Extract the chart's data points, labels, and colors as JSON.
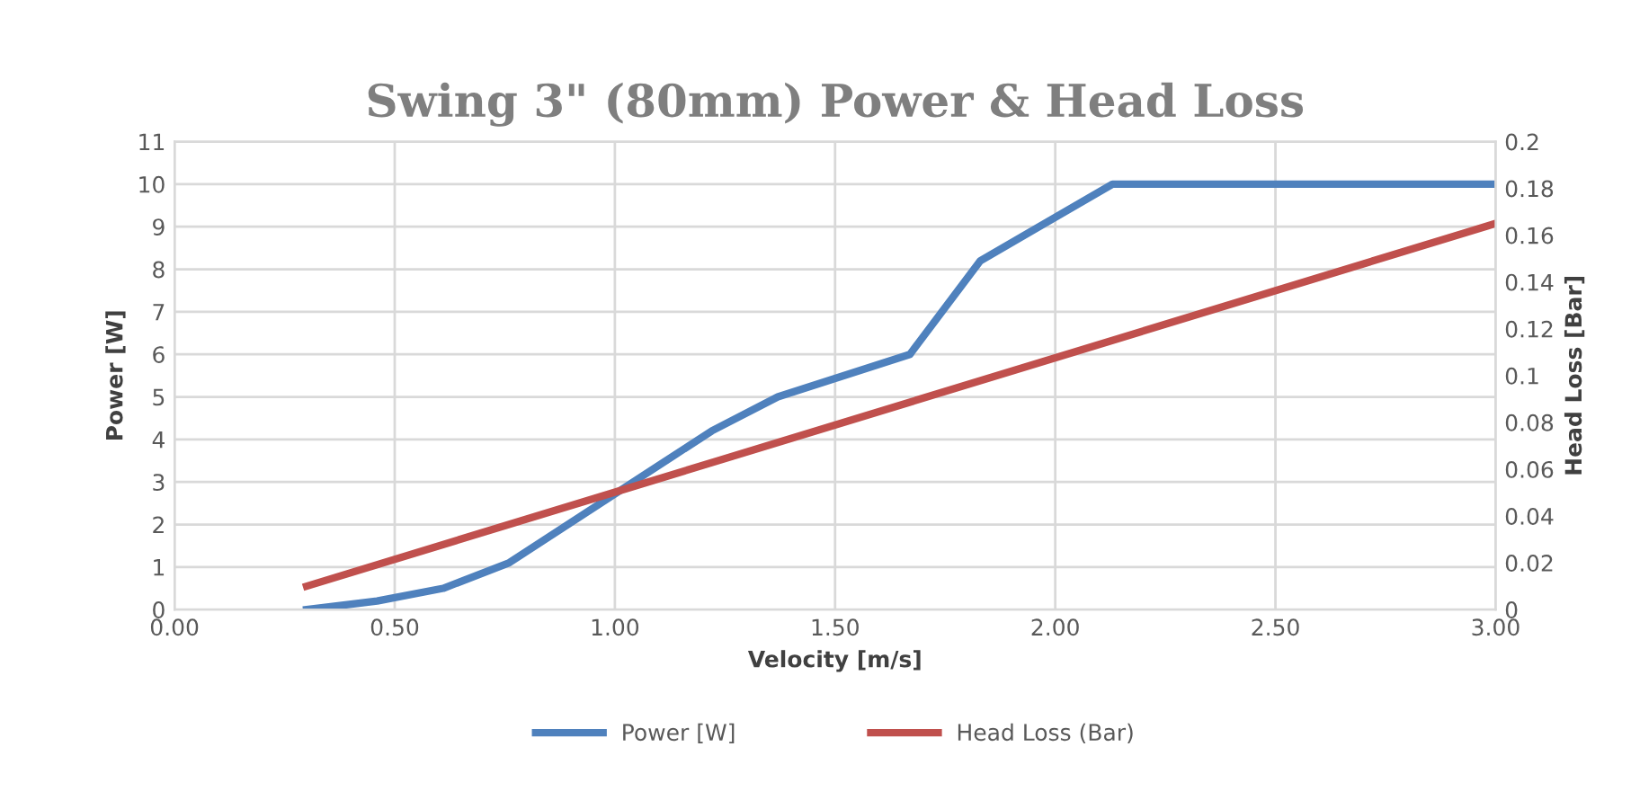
{
  "chart_data": {
    "type": "line",
    "title": "Swing 3\" (80mm) Power & Head Loss",
    "xlabel": "Velocity [m/s]",
    "ylabel": "Power [W]",
    "y2label": "Head Loss [Bar]",
    "xlim": [
      0,
      3
    ],
    "xticks": [
      {
        "value": 0,
        "label": "0.00"
      },
      {
        "value": 0.5,
        "label": "0.50"
      },
      {
        "value": 1,
        "label": "1.00"
      },
      {
        "value": 1.5,
        "label": "1.50"
      },
      {
        "value": 2,
        "label": "2.00"
      },
      {
        "value": 2.5,
        "label": "2.50"
      },
      {
        "value": 3,
        "label": "3.00"
      }
    ],
    "ylim": [
      0,
      11
    ],
    "yticks": [
      0,
      1,
      2,
      3,
      4,
      5,
      6,
      7,
      8,
      9,
      10,
      11
    ],
    "y2lim": [
      0,
      0.2
    ],
    "y2ticks": [
      0,
      0.02,
      0.04,
      0.06,
      0.08,
      0.1,
      0.12,
      0.14,
      0.16,
      0.18,
      0.2
    ],
    "grid": true,
    "legend": "bottom",
    "line_style": "solid",
    "series": [
      {
        "name": "Power [W]",
        "color": "#4f81bd",
        "x": [
          0.3,
          0.46,
          0.61,
          0.76,
          1.22,
          1.37,
          1.67,
          1.83,
          2.13,
          3.0
        ],
        "values": [
          0,
          0.2,
          0.5,
          1.1,
          4.2,
          5.0,
          6.0,
          8.2,
          10,
          10
        ]
      },
      {
        "name": "Head Loss (Bar)",
        "color": "#c0504d",
        "axis": "y2",
        "x": [
          0.3,
          3.0
        ],
        "values": [
          0.01,
          0.165
        ]
      }
    ]
  }
}
